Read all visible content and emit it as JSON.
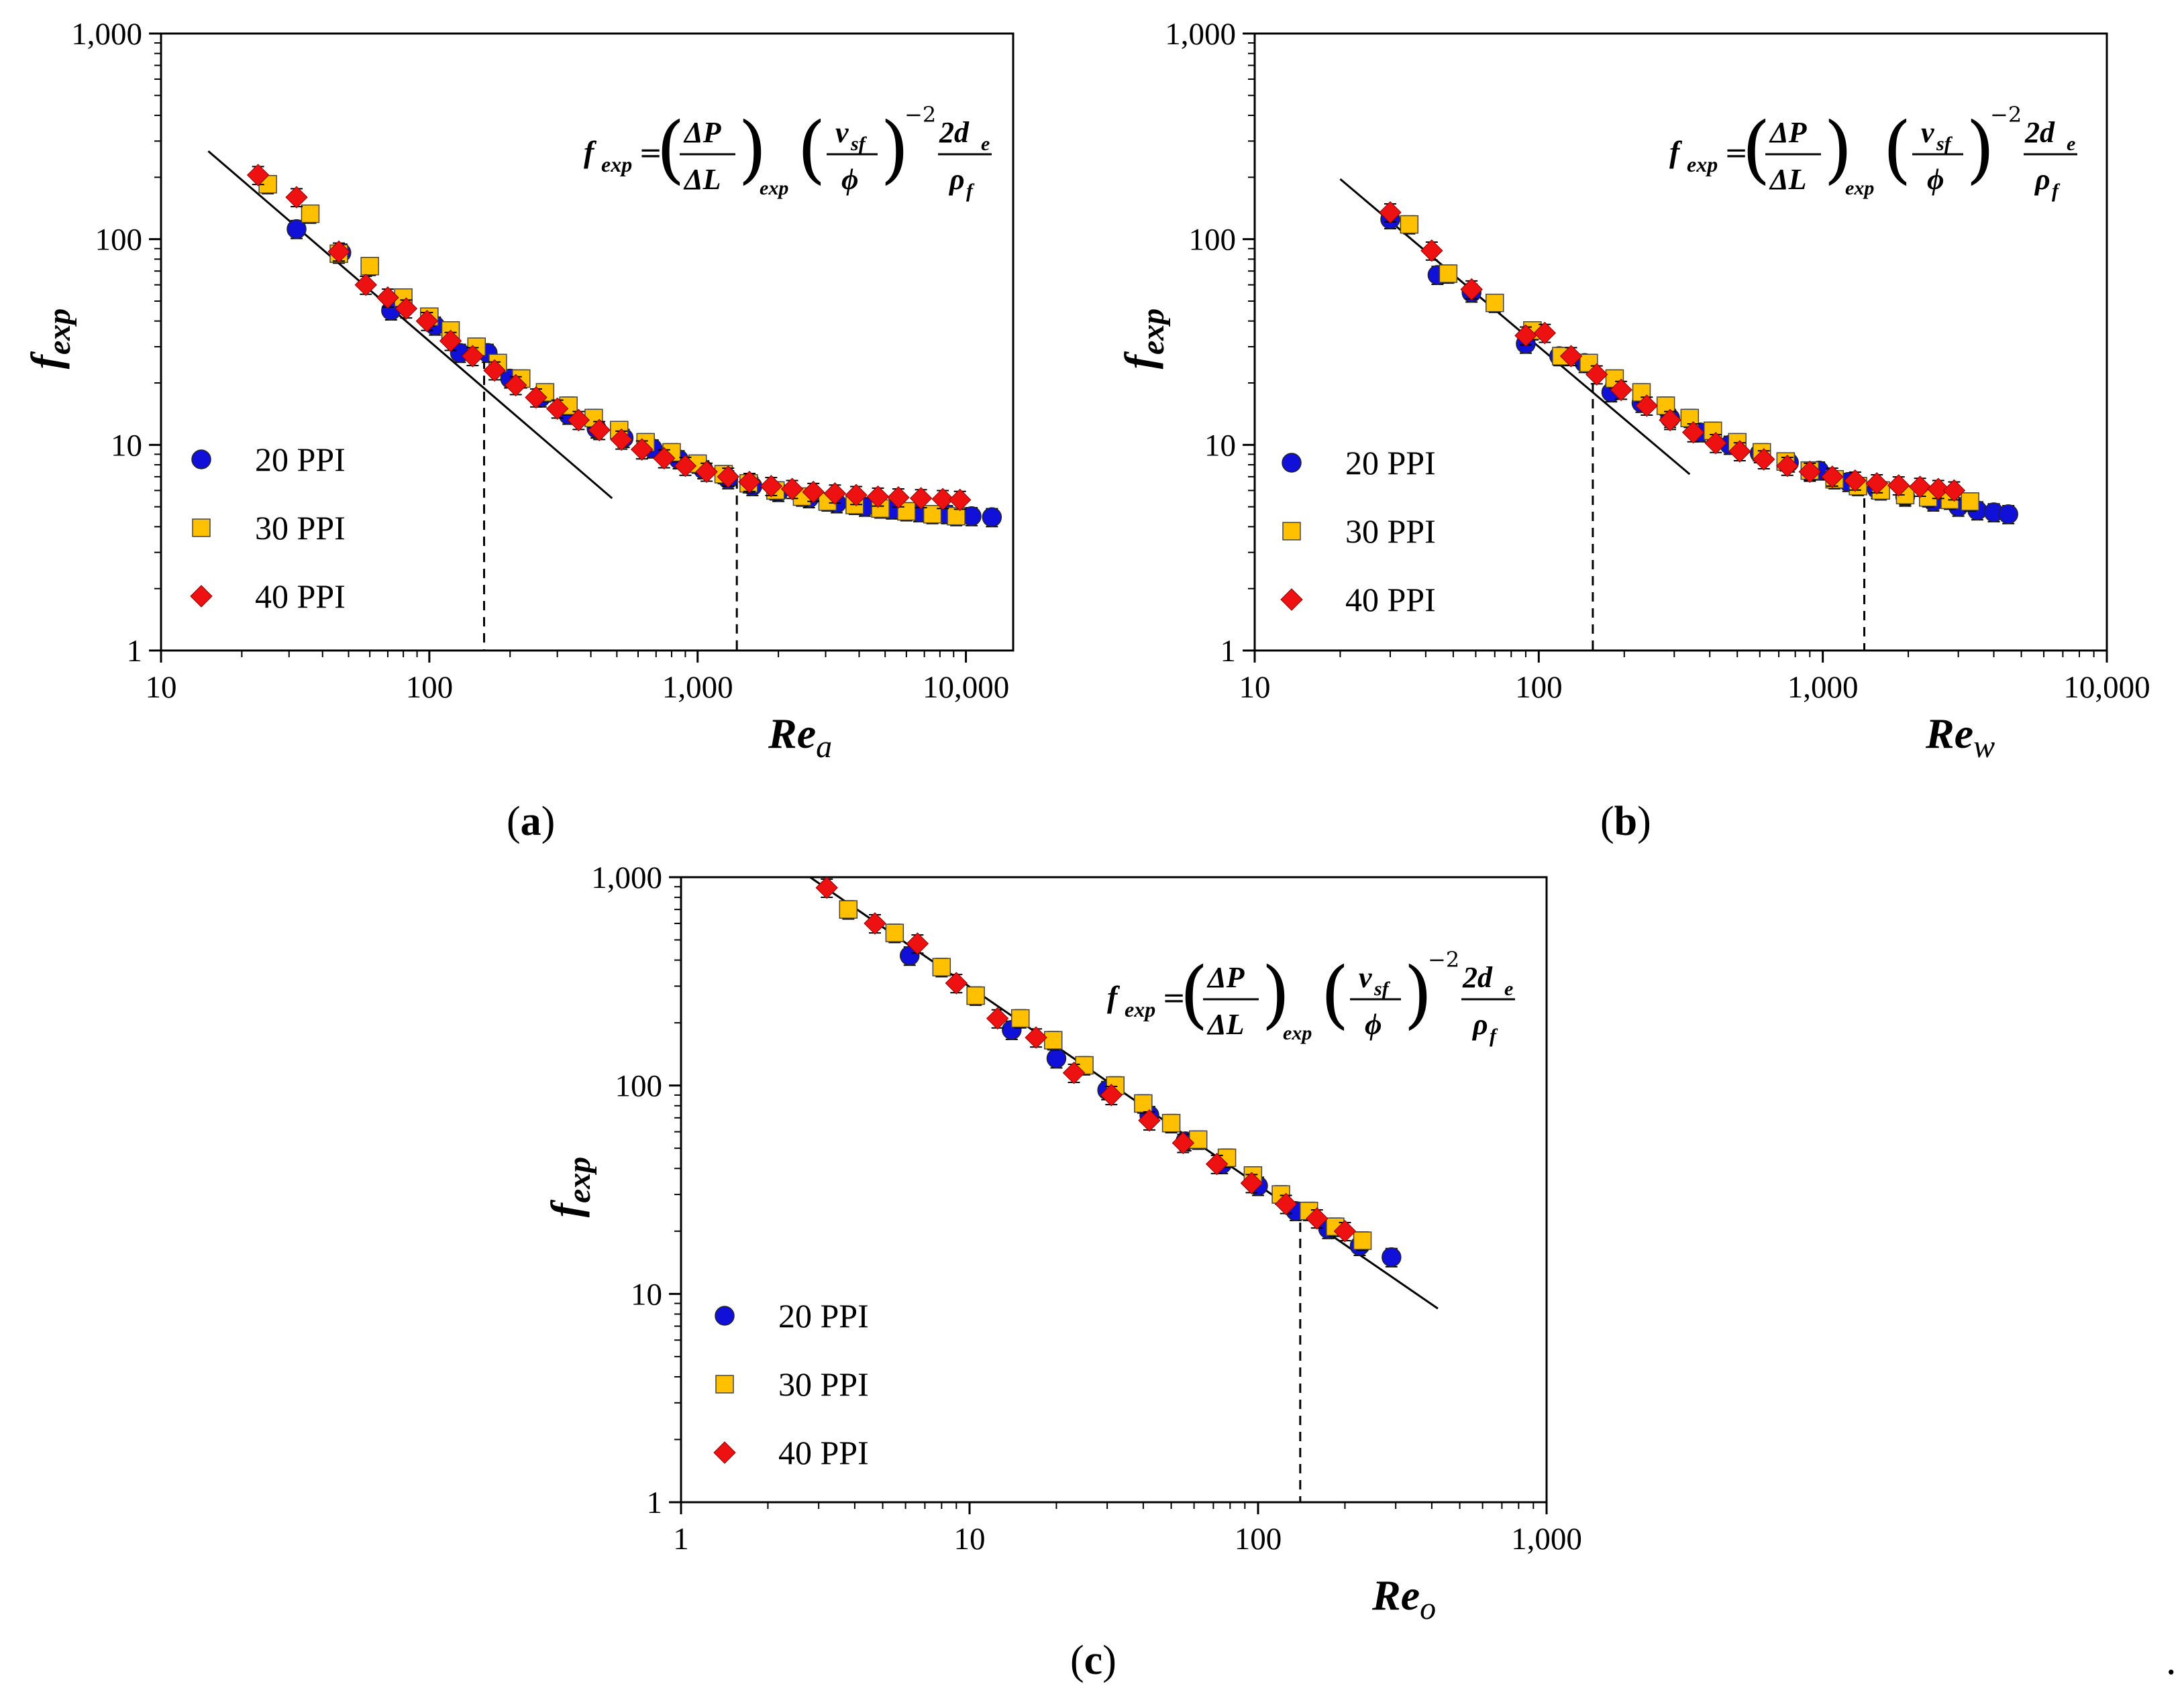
{
  "figure": {
    "trailing_mark": "."
  },
  "formula": {
    "lhs": "f",
    "lhs_sub": "exp",
    "eq": "=",
    "dp": "ΔP",
    "dl": "ΔL",
    "paren_sub": "exp",
    "v": "v",
    "v_sub": "sf",
    "phi": "ϕ",
    "exponent": "−2",
    "num": "2d",
    "num_sub": "e",
    "den": "ρ",
    "den_sub": "f"
  },
  "colors": {
    "20 PPI": "#1010d8",
    "30 PPI": "#ffc000",
    "40 PPI": "#ee1111"
  },
  "chart_data": [
    {
      "type": "scatter",
      "panel_label": "a",
      "xscale": "log",
      "yscale": "log",
      "xlim": [
        10,
        15000
      ],
      "ylim": [
        1,
        1000
      ],
      "xticks": [
        10,
        100,
        1000,
        10000
      ],
      "xtick_labels": [
        "10",
        "100",
        "1,000",
        "10,000"
      ],
      "yticks": [
        1,
        10,
        100,
        1000
      ],
      "ytick_labels": [
        "1",
        "10",
        "100",
        "1,000"
      ],
      "xlabel_main": "Re",
      "xlabel_sub": "a",
      "ylabel_main": "f",
      "ylabel_sub": "exp",
      "legend_position": "bottom-left",
      "fit_line": {
        "x": [
          15,
          480
        ],
        "y": [
          268,
          5.5
        ]
      },
      "vlines": [
        {
          "x": 160,
          "y_top": 26
        },
        {
          "x": 1400,
          "y_top": 6.8
        }
      ],
      "series": [
        {
          "name": "20 PPI",
          "marker": "circle",
          "x": [
            32,
            47,
            72,
            105,
            130,
            165,
            200,
            260,
            330,
            420,
            530,
            680,
            850,
            1050,
            1300,
            1600,
            2000,
            2600,
            3300,
            4200,
            5300,
            6700,
            8500,
            10500,
            12500
          ],
          "y": [
            112,
            86,
            45,
            38,
            28,
            28,
            21,
            17,
            14,
            12,
            10.8,
            9.6,
            8.5,
            7.6,
            6.8,
            6.3,
            5.9,
            5.5,
            5.2,
            5.0,
            4.85,
            4.7,
            4.6,
            4.5,
            4.45
          ],
          "err": 10
        },
        {
          "name": "30 PPI",
          "marker": "square",
          "x": [
            25,
            36,
            46,
            60,
            80,
            100,
            120,
            150,
            180,
            220,
            270,
            330,
            410,
            510,
            640,
            800,
            1000,
            1250,
            1550,
            1950,
            2450,
            3050,
            3850,
            4800,
            6000,
            7500,
            9200
          ],
          "y": [
            185,
            133,
            85,
            74,
            52,
            42,
            36,
            30,
            25,
            21,
            18,
            15.5,
            13.5,
            11.8,
            10.3,
            9.2,
            8.1,
            7.2,
            6.5,
            6.0,
            5.6,
            5.3,
            5.1,
            4.9,
            4.75,
            4.6,
            4.5
          ],
          "err": 10
        },
        {
          "name": "40 PPI",
          "marker": "diamond",
          "x": [
            23,
            32,
            46,
            58,
            70,
            82,
            98,
            120,
            145,
            175,
            210,
            250,
            300,
            360,
            430,
            520,
            620,
            750,
            900,
            1080,
            1300,
            1560,
            1880,
            2250,
            2700,
            3250,
            3900,
            4700,
            5600,
            6800,
            8200,
            9500
          ],
          "y": [
            205,
            160,
            87,
            60,
            52,
            46,
            40,
            32,
            27,
            23,
            19.5,
            17,
            15,
            13.2,
            11.8,
            10.6,
            9.5,
            8.6,
            7.9,
            7.4,
            7.0,
            6.6,
            6.3,
            6.1,
            5.9,
            5.8,
            5.7,
            5.6,
            5.55,
            5.5,
            5.45,
            5.4
          ],
          "err": 10
        }
      ]
    },
    {
      "type": "scatter",
      "panel_label": "b",
      "xscale": "log",
      "yscale": "log",
      "xlim": [
        10,
        10000
      ],
      "ylim": [
        1,
        1000
      ],
      "xticks": [
        10,
        100,
        1000,
        10000
      ],
      "xtick_labels": [
        "10",
        "100",
        "1,000",
        "10,000"
      ],
      "yticks": [
        1,
        10,
        100,
        1000
      ],
      "ytick_labels": [
        "1",
        "10",
        "100",
        "1,000"
      ],
      "xlabel_main": "Re",
      "xlabel_sub": "w",
      "ylabel_main": "f",
      "ylabel_sub": "exp",
      "legend_position": "bottom-left",
      "fit_line": {
        "x": [
          20,
          340
        ],
        "y": [
          196,
          7.2
        ]
      },
      "vlines": [
        {
          "x": 155,
          "y_top": 20
        },
        {
          "x": 1400,
          "y_top": 5.5
        }
      ],
      "series": [
        {
          "name": "20 PPI",
          "marker": "circle",
          "x": [
            30,
            44,
            58,
            90,
            118,
            145,
            180,
            230,
            290,
            370,
            470,
            600,
            760,
            970,
            1230,
            1550,
            1950,
            2450,
            3000,
            3500,
            4000,
            4500
          ],
          "y": [
            125,
            67,
            55,
            31,
            27,
            25,
            18,
            16,
            13.5,
            11.5,
            10,
            9.1,
            8.2,
            7.5,
            6.6,
            6.1,
            5.6,
            5.3,
            5.0,
            4.8,
            4.7,
            4.6
          ],
          "err": 10
        },
        {
          "name": "30 PPI",
          "marker": "square",
          "x": [
            35,
            48,
            70,
            95,
            120,
            150,
            185,
            230,
            280,
            340,
            410,
            500,
            610,
            740,
            900,
            1100,
            1330,
            1600,
            1950,
            2350,
            2800,
            3300
          ],
          "y": [
            118,
            68,
            49,
            36,
            27,
            25,
            21,
            18,
            15.5,
            13.5,
            11.7,
            10.3,
            9.2,
            8.3,
            7.5,
            6.8,
            6.3,
            6.0,
            5.7,
            5.55,
            5.4,
            5.3
          ],
          "err": 10
        },
        {
          "name": "40 PPI",
          "marker": "diamond",
          "x": [
            30,
            42,
            58,
            90,
            105,
            130,
            160,
            195,
            240,
            290,
            350,
            420,
            510,
            620,
            750,
            900,
            1080,
            1300,
            1550,
            1850,
            2200,
            2550,
            2900
          ],
          "y": [
            135,
            88,
            57,
            34,
            35,
            27,
            22,
            18.5,
            15.5,
            13.2,
            11.5,
            10.2,
            9.3,
            8.5,
            7.9,
            7.4,
            7.0,
            6.7,
            6.5,
            6.35,
            6.25,
            6.1,
            6.0
          ],
          "err": 10
        }
      ]
    },
    {
      "type": "scatter",
      "panel_label": "c",
      "xscale": "log",
      "yscale": "log",
      "xlim": [
        1,
        1000
      ],
      "ylim": [
        1,
        1000
      ],
      "xticks": [
        1,
        10,
        100,
        1000
      ],
      "xtick_labels": [
        "1",
        "10",
        "100",
        "1,000"
      ],
      "yticks": [
        1,
        10,
        100,
        1000
      ],
      "ytick_labels": [
        "1",
        "10",
        "100",
        "1,000"
      ],
      "xlabel_main": "Re",
      "xlabel_sub": "o",
      "ylabel_main": "f",
      "ylabel_sub": "exp",
      "legend_position": "bottom-left",
      "fit_line": {
        "x": [
          2.8,
          420
        ],
        "y": [
          1000,
          8.5
        ]
      },
      "vlines": [
        {
          "x": 140,
          "y_top": 22
        }
      ],
      "series": [
        {
          "name": "20 PPI",
          "marker": "circle",
          "x": [
            6.2,
            14,
            20,
            30,
            42,
            56,
            75,
            100,
            135,
            175,
            225,
            290
          ],
          "y": [
            420,
            185,
            135,
            95,
            72,
            54,
            42,
            33,
            25,
            20.5,
            17,
            15
          ],
          "err": 10
        },
        {
          "name": "30 PPI",
          "marker": "square",
          "x": [
            3.8,
            5.5,
            8,
            10.5,
            15,
            19.5,
            25,
            32,
            40,
            50,
            62,
            78,
            96,
            120,
            150,
            185,
            230
          ],
          "y": [
            700,
            540,
            370,
            270,
            210,
            165,
            125,
            100,
            82,
            66,
            55,
            45,
            37,
            30,
            25,
            21,
            18
          ],
          "err": 10
        },
        {
          "name": "40 PPI",
          "marker": "diamond",
          "x": [
            3.2,
            4.7,
            6.6,
            9,
            12.5,
            17,
            23,
            31,
            42,
            55,
            72,
            95,
            125,
            160,
            200
          ],
          "y": [
            890,
            600,
            480,
            310,
            210,
            170,
            115,
            90,
            68,
            53,
            42,
            34,
            27,
            23,
            20
          ],
          "err": 10
        }
      ]
    }
  ]
}
